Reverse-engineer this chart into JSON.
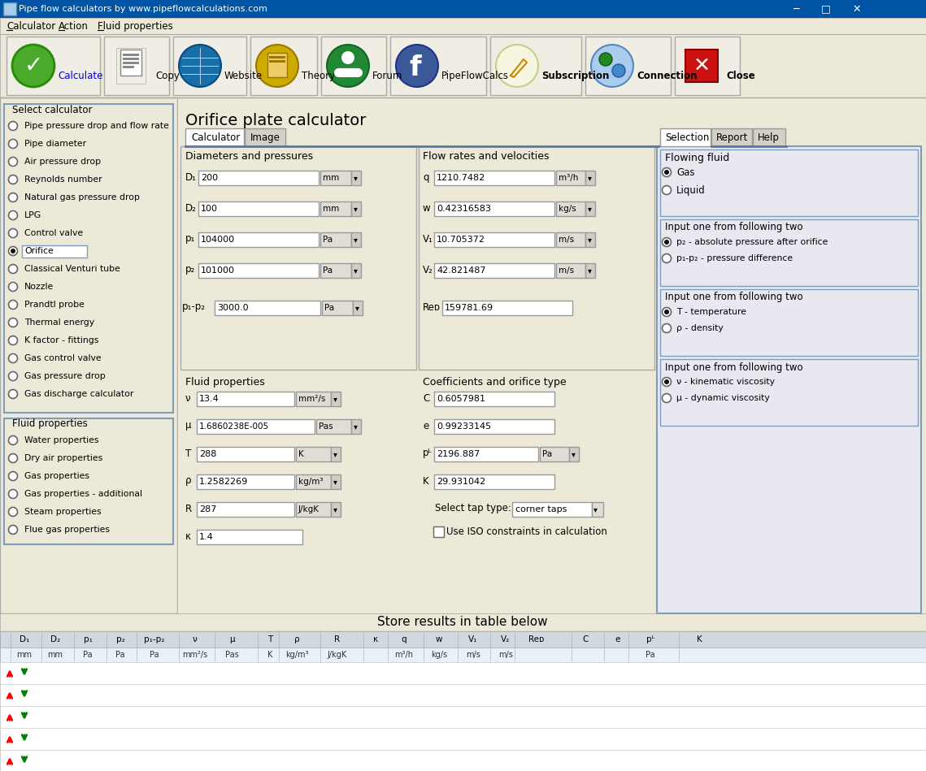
{
  "title_bar": "Pipe flow calculators by www.pipeflowcalculations.com",
  "menu_items": [
    "Calculator",
    "Action",
    "Fluid properties"
  ],
  "select_calculator_items": [
    "Pipe pressure drop and flow rate",
    "Pipe diameter",
    "Air pressure drop",
    "Reynolds number",
    "Natural gas pressure drop",
    "LPG",
    "Control valve",
    "Orifice",
    "Classical Venturi tube",
    "Nozzle",
    "Prandtl probe",
    "Thermal energy",
    "K factor - fittings",
    "Gas control valve",
    "Gas pressure drop",
    "Gas discharge calculator"
  ],
  "selected_calculator_idx": 7,
  "fluid_properties_items": [
    "Water properties",
    "Dry air properties",
    "Gas properties",
    "Gas properties - additional",
    "Steam properties",
    "Flue gas properties"
  ],
  "table_headers": [
    "D₁",
    "D₂",
    "p₁",
    "p₂",
    "p₁-p₂",
    "ν",
    "μ",
    "T",
    "ρ",
    "R",
    "κ",
    "q",
    "w",
    "V₁",
    "V₂",
    "Reᴅ",
    "C",
    "e",
    "pᴸ",
    "K"
  ],
  "table_units": [
    "mm",
    "mm",
    "Pa",
    "Pa",
    "Pa",
    "mm²/s",
    "Pas",
    "K",
    "kg/m³",
    "J/kgK",
    "",
    "m³/h",
    "kg/s",
    "m/s",
    "m/s",
    "",
    "",
    "",
    "Pa",
    ""
  ],
  "bg_color": "#d4d0c8",
  "panel_bg": "#ece9d8",
  "white": "#ffffff",
  "input_bg": "#ffffff",
  "group_border": "#7f9db9",
  "tab_active_bg": "#ffffff",
  "tab_inactive_bg": "#d4d0c8",
  "toolbar_bg": "#ece9d8",
  "titlebar_bg": "#0054a6",
  "menu_bg": "#ece9d8",
  "right_panel_bg": "#ece9d8",
  "table_header_bg": "#d4d0c8",
  "table_row_bg": "#ffffff",
  "green_circle": "#4aaa2a",
  "red_box": "#cc1111",
  "blue_facebook": "#3b5998",
  "gray_icon": "#888888",
  "blue_globe": "#1a6ea8",
  "yellow_book": "#ccaa00",
  "green_forum": "#228833"
}
